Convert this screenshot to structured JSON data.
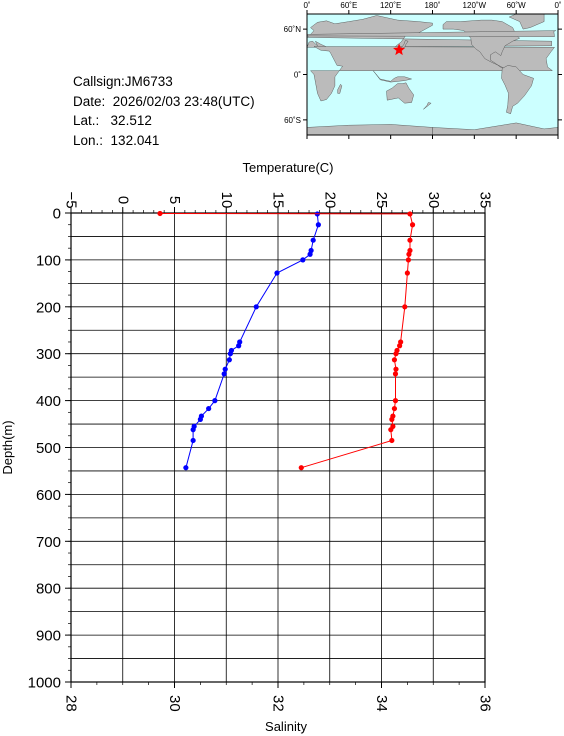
{
  "info": {
    "callsign_label": "Callsign:",
    "callsign": "JM6733",
    "date_label": "Date:",
    "date": "2026/02/03 23:48(UTC)",
    "lat_label": "Lat.:",
    "lat": "32.512",
    "lon_label": "Lon.:",
    "lon": "132.041"
  },
  "map": {
    "lon_ticks": [
      "0˚",
      "60˚E",
      "120˚E",
      "180˚",
      "120˚W",
      "60˚W",
      "0˚"
    ],
    "lat_ticks": [
      "60˚N",
      "0˚",
      "60˚S"
    ],
    "station_lat": 32.512,
    "station_lon": 132.041,
    "ocean_color": "#ccffff",
    "land_color": "#bbbbbb",
    "marker_color": "#ff0000"
  },
  "chart_data": {
    "type": "line",
    "top_axis": {
      "label": "Temperature(C)",
      "range": [
        -5,
        35
      ],
      "ticks": [
        "−5",
        "0",
        "5",
        "10",
        "15",
        "20",
        "25",
        "30",
        "35"
      ]
    },
    "bottom_axis": {
      "label": "Salinity",
      "range": [
        28,
        36
      ],
      "ticks": [
        "28",
        "30",
        "32",
        "34",
        "36"
      ]
    },
    "y_axis": {
      "label": "Depth(m)",
      "range": [
        0,
        1000
      ],
      "inverted": true,
      "ticks": [
        "0",
        "100",
        "200",
        "300",
        "400",
        "500",
        "600",
        "700",
        "800",
        "900",
        "1000"
      ]
    },
    "grid": true,
    "series": [
      {
        "axis": "temperature",
        "color": "#0000ff",
        "points": [
          {
            "x": 18.8,
            "y": 2
          },
          {
            "x": 18.9,
            "y": 25
          },
          {
            "x": 18.4,
            "y": 58
          },
          {
            "x": 18.2,
            "y": 80
          },
          {
            "x": 18.1,
            "y": 88
          },
          {
            "x": 17.4,
            "y": 100
          },
          {
            "x": 14.9,
            "y": 128
          },
          {
            "x": 12.9,
            "y": 200
          },
          {
            "x": 11.3,
            "y": 275
          },
          {
            "x": 11.2,
            "y": 283
          },
          {
            "x": 10.5,
            "y": 293
          },
          {
            "x": 10.4,
            "y": 300
          },
          {
            "x": 10.3,
            "y": 313
          },
          {
            "x": 9.9,
            "y": 333
          },
          {
            "x": 9.8,
            "y": 343
          },
          {
            "x": 8.9,
            "y": 400
          },
          {
            "x": 8.3,
            "y": 417
          },
          {
            "x": 7.6,
            "y": 433
          },
          {
            "x": 7.5,
            "y": 440
          },
          {
            "x": 6.9,
            "y": 455
          },
          {
            "x": 6.8,
            "y": 462
          },
          {
            "x": 6.8,
            "y": 485
          },
          {
            "x": 6.1,
            "y": 543
          }
        ]
      },
      {
        "axis": "salinity",
        "color": "#ff0000",
        "points": [
          {
            "x": 29.72,
            "y": 1
          },
          {
            "x": 34.55,
            "y": 2
          },
          {
            "x": 34.6,
            "y": 25
          },
          {
            "x": 34.55,
            "y": 58
          },
          {
            "x": 34.55,
            "y": 80
          },
          {
            "x": 34.53,
            "y": 88
          },
          {
            "x": 34.52,
            "y": 100
          },
          {
            "x": 34.5,
            "y": 128
          },
          {
            "x": 34.45,
            "y": 200
          },
          {
            "x": 34.37,
            "y": 275
          },
          {
            "x": 34.35,
            "y": 283
          },
          {
            "x": 34.3,
            "y": 293
          },
          {
            "x": 34.28,
            "y": 300
          },
          {
            "x": 34.25,
            "y": 313
          },
          {
            "x": 34.28,
            "y": 333
          },
          {
            "x": 34.27,
            "y": 343
          },
          {
            "x": 34.27,
            "y": 400
          },
          {
            "x": 34.25,
            "y": 417
          },
          {
            "x": 34.22,
            "y": 433
          },
          {
            "x": 34.2,
            "y": 440
          },
          {
            "x": 34.22,
            "y": 455
          },
          {
            "x": 34.18,
            "y": 462
          },
          {
            "x": 34.2,
            "y": 485
          },
          {
            "x": 32.45,
            "y": 543
          }
        ]
      }
    ]
  }
}
